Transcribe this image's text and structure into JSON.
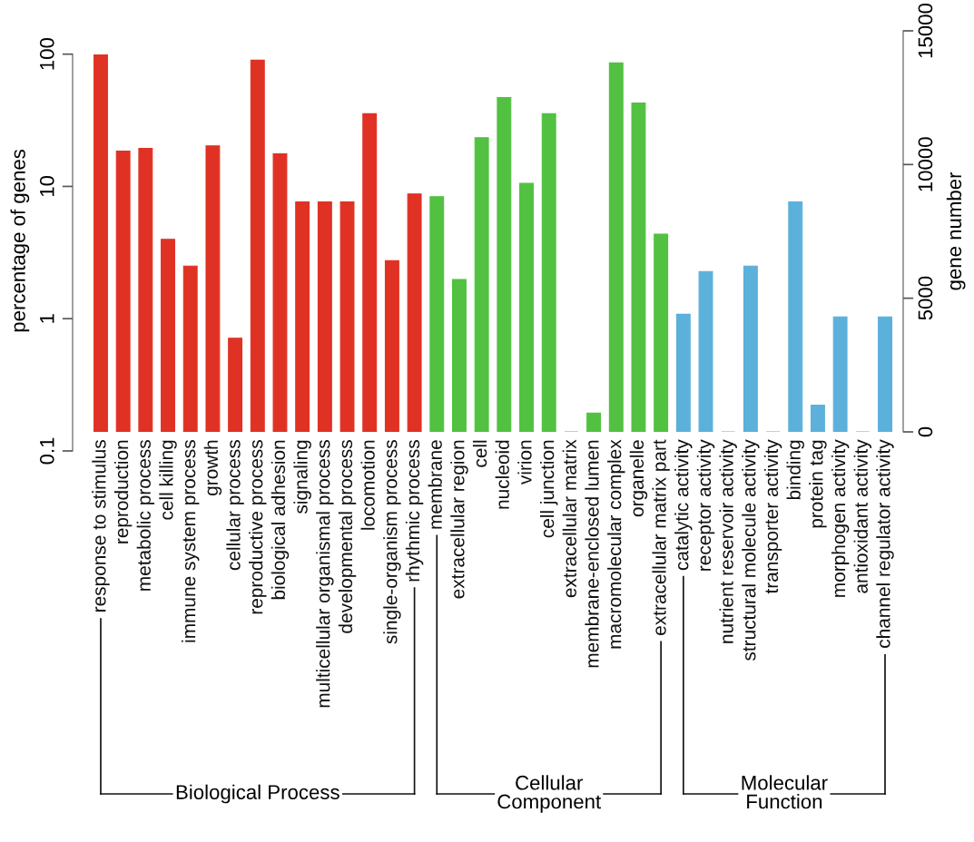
{
  "chart_data": {
    "type": "bar",
    "categories": [
      "response to stimulus",
      "reproduction",
      "metabolic process",
      "cell killing",
      "immune system process",
      "growth",
      "cellular process",
      "reproductive process",
      "biological adhesion",
      "signaling",
      "multicellular organismal process",
      "developmental process",
      "locomotion",
      "single-organism process",
      "rhythmic process",
      "membrane",
      "extracellular region",
      "cell",
      "nucleoid",
      "virion",
      "cell junction",
      "extracellular matrix",
      "membrane-enclosed lumen",
      "macromolecular complex",
      "organelle",
      "extracellular matrix part",
      "catalytic activity",
      "receptor activity",
      "nutrient reservoir activity",
      "structural molecule activity",
      "transporter activity",
      "binding",
      "protein tag",
      "morphogen activity",
      "antioxidant activity",
      "channel regulator activity"
    ],
    "series": [
      {
        "color": "#e03224",
        "axis": "y2",
        "values": [
          14100,
          10500,
          10600,
          7200,
          6200,
          10700,
          3500,
          13900,
          10400,
          8600,
          8600,
          8600,
          11900,
          6400,
          8900,
          null,
          null,
          null,
          null,
          null,
          null,
          null,
          null,
          null,
          null,
          null,
          null,
          null,
          null,
          null,
          null,
          null,
          null,
          null,
          null,
          null
        ]
      },
      {
        "color": "#52c142",
        "axis": "y2",
        "values": [
          null,
          null,
          null,
          null,
          null,
          null,
          null,
          null,
          null,
          null,
          null,
          null,
          null,
          null,
          null,
          8800,
          5700,
          11000,
          12500,
          9300,
          11900,
          0,
          700,
          13800,
          12300,
          7400,
          null,
          null,
          null,
          null,
          null,
          null,
          null,
          null,
          null,
          null
        ]
      },
      {
        "color": "#5bb1da",
        "axis": "y2",
        "values": [
          null,
          null,
          null,
          null,
          null,
          null,
          null,
          null,
          null,
          null,
          null,
          null,
          null,
          null,
          null,
          null,
          null,
          null,
          null,
          null,
          null,
          null,
          null,
          null,
          null,
          null,
          4400,
          6000,
          0,
          6200,
          0,
          8600,
          1000,
          4300,
          0,
          4300
        ]
      }
    ],
    "annotations": [
      "Biological Process",
      "Cellular\nComponent",
      "Molecular\nFunction"
    ],
    "ylabel": "percentage of genes",
    "y2label": "gene number",
    "log": "y",
    "ylim": [
      0.1,
      150
    ],
    "yticks": [
      0.1,
      1,
      10,
      100
    ],
    "y2lim": [
      0,
      15000
    ],
    "y2ticks": [
      0,
      5000,
      10000,
      15000
    ]
  }
}
